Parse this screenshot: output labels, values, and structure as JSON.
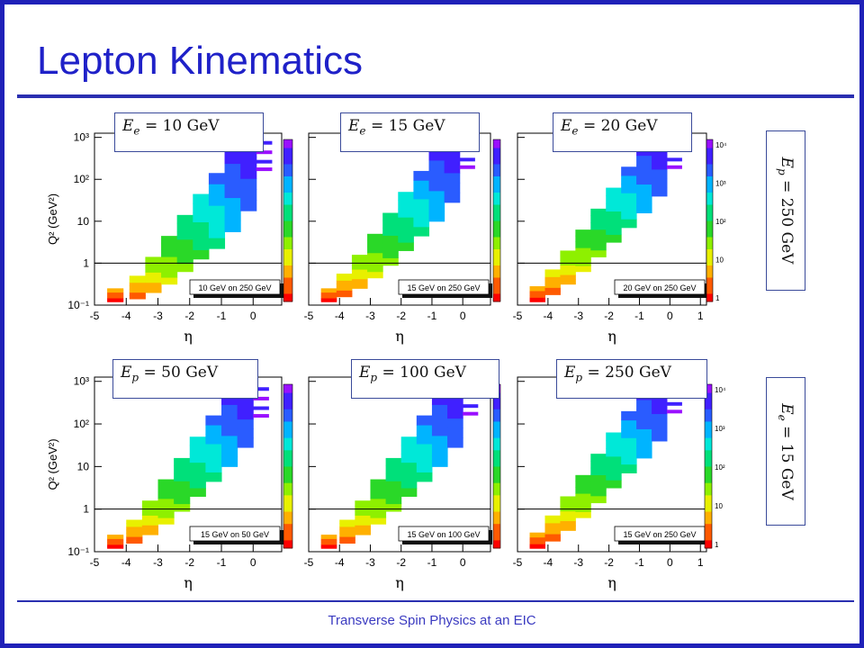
{
  "slide": {
    "title": "Lepton Kinematics",
    "footer": "Transverse Spin Physics at an EIC",
    "accent": "#1f21b8"
  },
  "chart_data": [
    {
      "type": "heatmap",
      "panel_label": "10 GeV on 250 GeV",
      "header": {
        "var": "E",
        "sub": "e",
        "value": "= 10 GeV"
      },
      "xlabel": "η",
      "ylabel": "Q² (GeV²)",
      "xlim": [
        -5,
        0.9
      ],
      "ylim_log10": [
        -1,
        3.1
      ],
      "x_ticks": [
        -5,
        -4,
        -3,
        -2,
        -1,
        0
      ],
      "y_ticks": [
        "10⁻¹",
        "1",
        "10",
        "10²",
        "10³"
      ],
      "horizontal_line_at": 1,
      "coverage": [
        [
          -4.6,
          -0.92,
          -0.6
        ],
        [
          -3.9,
          -0.85,
          -0.3
        ],
        [
          -3.4,
          -0.7,
          0.15
        ],
        [
          -2.9,
          -0.5,
          0.65
        ],
        [
          -2.4,
          -0.2,
          1.15
        ],
        [
          -1.9,
          0.1,
          1.65
        ],
        [
          -1.4,
          0.35,
          2.15
        ],
        [
          -0.9,
          0.75,
          2.65
        ],
        [
          -0.4,
          1.25,
          3.05
        ]
      ]
    },
    {
      "type": "heatmap",
      "panel_label": "15 GeV on 250 GeV",
      "header": {
        "var": "E",
        "sub": "e",
        "value": "= 15 GeV"
      },
      "xlabel": "η",
      "xlim": [
        -5,
        0.9
      ],
      "ylim_log10": [
        -1,
        3.1
      ],
      "x_ticks": [
        -5,
        -4,
        -3,
        -2,
        -1,
        0
      ],
      "horizontal_line_at": 1,
      "coverage": [
        [
          -4.6,
          -0.92,
          -0.6
        ],
        [
          -4.1,
          -0.8,
          -0.25
        ],
        [
          -3.6,
          -0.6,
          0.2
        ],
        [
          -3.1,
          -0.35,
          0.7
        ],
        [
          -2.6,
          -0.05,
          1.2
        ],
        [
          -2.1,
          0.3,
          1.7
        ],
        [
          -1.6,
          0.65,
          2.2
        ],
        [
          -1.1,
          1.0,
          2.7
        ],
        [
          -0.6,
          1.45,
          3.1
        ]
      ]
    },
    {
      "type": "heatmap",
      "panel_label": "20 GeV on 250 GeV",
      "header": {
        "var": "E",
        "sub": "e",
        "value": "= 20 GeV"
      },
      "xlabel": "η",
      "xlim": [
        -5,
        1.2
      ],
      "ylim_log10": [
        -1,
        3.1
      ],
      "x_ticks": [
        -5,
        -4,
        -3,
        -2,
        -1,
        0,
        1
      ],
      "horizontal_line_at": 1,
      "coverage": [
        [
          -4.6,
          -0.92,
          -0.55
        ],
        [
          -4.1,
          -0.75,
          -0.15
        ],
        [
          -3.6,
          -0.5,
          0.3
        ],
        [
          -3.1,
          -0.2,
          0.8
        ],
        [
          -2.6,
          0.15,
          1.3
        ],
        [
          -2.1,
          0.5,
          1.8
        ],
        [
          -1.6,
          0.85,
          2.3
        ],
        [
          -1.1,
          1.2,
          2.8
        ],
        [
          -0.6,
          1.6,
          3.1
        ]
      ]
    },
    {
      "type": "heatmap",
      "panel_label": "15 GeV on 50 GeV",
      "header": {
        "var": "E",
        "sub": "p",
        "value": "= 50 GeV"
      },
      "xlabel": "η",
      "ylabel": "Q² (GeV²)",
      "xlim": [
        -5,
        0.9
      ],
      "ylim_log10": [
        -1,
        3.1
      ],
      "x_ticks": [
        -5,
        -4,
        -3,
        -2,
        -1,
        0
      ],
      "y_ticks": [
        "10⁻¹",
        "1",
        "10",
        "10²",
        "10³"
      ],
      "horizontal_line_at": 1,
      "coverage": [
        [
          -4.6,
          -0.92,
          -0.6
        ],
        [
          -4.0,
          -0.8,
          -0.25
        ],
        [
          -3.5,
          -0.6,
          0.2
        ],
        [
          -3.0,
          -0.35,
          0.7
        ],
        [
          -2.5,
          -0.05,
          1.2
        ],
        [
          -2.0,
          0.3,
          1.7
        ],
        [
          -1.5,
          0.65,
          2.2
        ],
        [
          -1.0,
          1.0,
          2.7
        ],
        [
          -0.5,
          1.45,
          3.0
        ]
      ]
    },
    {
      "type": "heatmap",
      "panel_label": "15 GeV on 100 GeV",
      "header": {
        "var": "E",
        "sub": "p",
        "value": "= 100 GeV"
      },
      "xlabel": "η",
      "xlim": [
        -5,
        0.9
      ],
      "ylim_log10": [
        -1,
        3.1
      ],
      "x_ticks": [
        -5,
        -4,
        -3,
        -2,
        -1,
        0
      ],
      "horizontal_line_at": 1,
      "coverage": [
        [
          -4.6,
          -0.92,
          -0.6
        ],
        [
          -4.0,
          -0.8,
          -0.25
        ],
        [
          -3.5,
          -0.6,
          0.2
        ],
        [
          -3.0,
          -0.35,
          0.7
        ],
        [
          -2.5,
          -0.05,
          1.2
        ],
        [
          -2.0,
          0.3,
          1.7
        ],
        [
          -1.5,
          0.65,
          2.2
        ],
        [
          -1.0,
          1.0,
          2.7
        ],
        [
          -0.5,
          1.45,
          3.05
        ]
      ]
    },
    {
      "type": "heatmap",
      "panel_label": "15 GeV on 250 GeV",
      "header": {
        "var": "E",
        "sub": "p",
        "value": "= 250 GeV"
      },
      "xlabel": "η",
      "xlim": [
        -5,
        1.2
      ],
      "ylim_log10": [
        -1,
        3.1
      ],
      "x_ticks": [
        -5,
        -4,
        -3,
        -2,
        -1,
        0,
        1
      ],
      "horizontal_line_at": 1,
      "coverage": [
        [
          -4.6,
          -0.92,
          -0.55
        ],
        [
          -4.1,
          -0.75,
          -0.15
        ],
        [
          -3.6,
          -0.5,
          0.3
        ],
        [
          -3.1,
          -0.2,
          0.8
        ],
        [
          -2.6,
          0.15,
          1.3
        ],
        [
          -2.1,
          0.5,
          1.8
        ],
        [
          -1.6,
          0.85,
          2.3
        ],
        [
          -1.1,
          1.2,
          2.8
        ],
        [
          -0.6,
          1.6,
          3.1
        ]
      ]
    }
  ],
  "side_labels": [
    {
      "var": "E",
      "sub": "p",
      "value": "= 250 GeV"
    },
    {
      "var": "E",
      "sub": "e",
      "value": "= 15 GeV"
    }
  ],
  "colorbar_ticks": [
    "1",
    "10",
    "10²",
    "10³",
    "10⁴"
  ],
  "palette": [
    "#ff0000",
    "#ff5a00",
    "#ffb000",
    "#e8f000",
    "#8ef000",
    "#2ad828",
    "#00e07a",
    "#00e8d8",
    "#00b4ff",
    "#2a5cff",
    "#4020ff",
    "#9a10ff"
  ]
}
